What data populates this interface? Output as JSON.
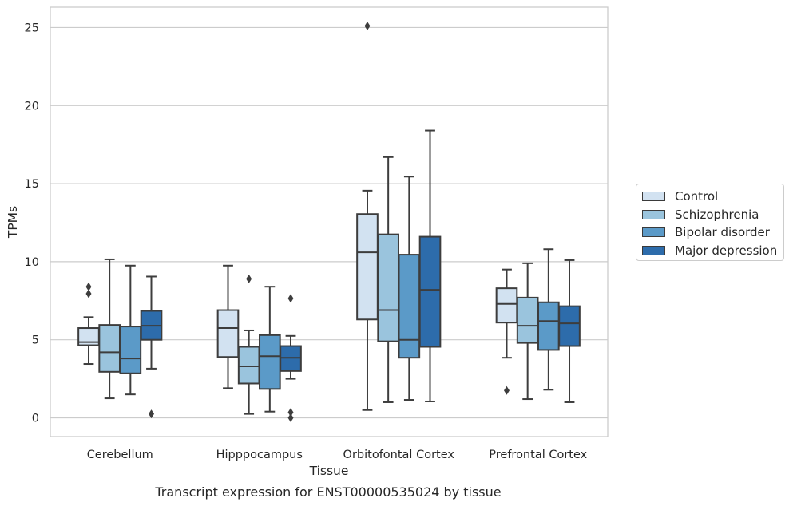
{
  "chart_data": {
    "type": "box",
    "title": "Transcript expression for ENST00000535024 by tissue",
    "xlabel": "Tissue",
    "ylabel": "TPMs",
    "ylim": [
      -1.2,
      26.3
    ],
    "yticks": [
      0,
      5,
      10,
      15,
      20,
      25
    ],
    "grid": "horizontal",
    "legend_position": "right",
    "categories": [
      "Cerebellum",
      "Hipppocampus",
      "Orbitofontal Cortex",
      "Prefrontal Cortex"
    ],
    "series": [
      {
        "name": "Control",
        "color": "#d2e2f1",
        "boxes": [
          {
            "whislo": 3.45,
            "q1": 4.65,
            "med": 4.85,
            "q3": 5.75,
            "whishi": 6.45,
            "fliers": [
              7.95,
              8.4
            ]
          },
          {
            "whislo": 1.9,
            "q1": 3.9,
            "med": 5.75,
            "q3": 6.9,
            "whishi": 9.75,
            "fliers": []
          },
          {
            "whislo": 0.5,
            "q1": 6.3,
            "med": 10.6,
            "q3": 13.05,
            "whishi": 14.55,
            "fliers": [
              25.1
            ]
          },
          {
            "whislo": 3.85,
            "q1": 6.1,
            "med": 7.3,
            "q3": 8.3,
            "whishi": 9.5,
            "fliers": [
              1.75
            ]
          }
        ]
      },
      {
        "name": "Schizophrenia",
        "color": "#9ac4dd",
        "boxes": [
          {
            "whislo": 1.25,
            "q1": 2.95,
            "med": 4.2,
            "q3": 5.95,
            "whishi": 10.15,
            "fliers": []
          },
          {
            "whislo": 0.25,
            "q1": 2.2,
            "med": 3.3,
            "q3": 4.55,
            "whishi": 5.6,
            "fliers": [
              8.9
            ]
          },
          {
            "whislo": 1.0,
            "q1": 4.9,
            "med": 6.9,
            "q3": 11.75,
            "whishi": 16.7,
            "fliers": []
          },
          {
            "whislo": 1.2,
            "q1": 4.8,
            "med": 5.9,
            "q3": 7.7,
            "whishi": 9.9,
            "fliers": []
          }
        ]
      },
      {
        "name": "Bipolar disorder",
        "color": "#5b9ac8",
        "boxes": [
          {
            "whislo": 1.5,
            "q1": 2.85,
            "med": 3.8,
            "q3": 5.85,
            "whishi": 9.75,
            "fliers": []
          },
          {
            "whislo": 0.4,
            "q1": 1.85,
            "med": 3.95,
            "q3": 5.3,
            "whishi": 8.4,
            "fliers": []
          },
          {
            "whislo": 1.15,
            "q1": 3.85,
            "med": 5.0,
            "q3": 10.45,
            "whishi": 15.45,
            "fliers": []
          },
          {
            "whislo": 1.8,
            "q1": 4.35,
            "med": 6.2,
            "q3": 7.4,
            "whishi": 10.8,
            "fliers": []
          }
        ]
      },
      {
        "name": "Major depression",
        "color": "#2d6cab",
        "boxes": [
          {
            "whislo": 3.15,
            "q1": 5.0,
            "med": 5.9,
            "q3": 6.85,
            "whishi": 9.05,
            "fliers": [
              0.25
            ]
          },
          {
            "whislo": 2.5,
            "q1": 3.0,
            "med": 3.85,
            "q3": 4.6,
            "whishi": 5.25,
            "fliers": [
              7.65,
              0.35,
              0.0
            ]
          },
          {
            "whislo": 1.05,
            "q1": 4.55,
            "med": 8.2,
            "q3": 11.6,
            "whishi": 18.4,
            "fliers": []
          },
          {
            "whislo": 1.0,
            "q1": 4.6,
            "med": 6.05,
            "q3": 7.15,
            "whishi": 10.1,
            "fliers": []
          }
        ]
      }
    ]
  }
}
